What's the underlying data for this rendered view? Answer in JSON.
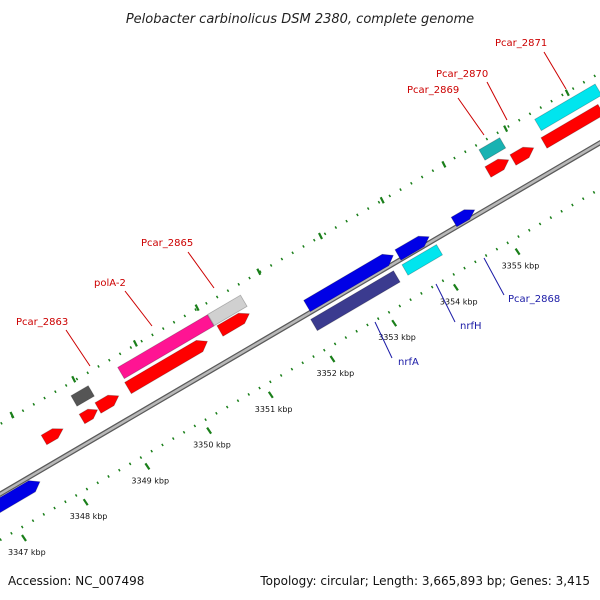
{
  "title": "Pelobacter carbinolicus DSM 2380, complete genome",
  "footer": {
    "accession": "Accession: NC_007498",
    "summary": "Topology: circular; Length: 3,665,893 bp; Genes: 3,415"
  },
  "colors": {
    "backbone": "#8c8c8c",
    "tick": "#1a7f1a",
    "label_red": "#cc0000",
    "label_blue": "#1a1aa6",
    "cds_red": "#ff0000",
    "cds_blue": "#0000e6",
    "cds_magenta": "#ff1493",
    "cds_grey": "#d0d0d0",
    "cds_darkgrey": "#555555",
    "cds_cyan": "#00e5ee",
    "cds_teal": "#19b2b2",
    "cds_navy": "#3b3b8f"
  },
  "ticks": [
    {
      "label": "3347 kbp",
      "kbp": 3347
    },
    {
      "label": "3348 kbp",
      "kbp": 3348
    },
    {
      "label": "3349 kbp",
      "kbp": 3349
    },
    {
      "label": "3350 kbp",
      "kbp": 3350
    },
    {
      "label": "3351 kbp",
      "kbp": 3351
    },
    {
      "label": "3352 kbp",
      "kbp": 3352
    },
    {
      "label": "3353 kbp",
      "kbp": 3353
    },
    {
      "label": "3354 kbp",
      "kbp": 3354
    },
    {
      "label": "3355 kbp",
      "kbp": 3355
    }
  ],
  "gene_labels": [
    {
      "text": "Pcar_2863",
      "color": "red"
    },
    {
      "text": "polA-2",
      "color": "red"
    },
    {
      "text": "Pcar_2865",
      "color": "red"
    },
    {
      "text": "Pcar_2869",
      "color": "red"
    },
    {
      "text": "Pcar_2870",
      "color": "red"
    },
    {
      "text": "Pcar_2871",
      "color": "red"
    },
    {
      "text": "nrfA",
      "color": "blue"
    },
    {
      "text": "nrfH",
      "color": "blue"
    },
    {
      "text": "Pcar_2868",
      "color": "blue"
    }
  ]
}
